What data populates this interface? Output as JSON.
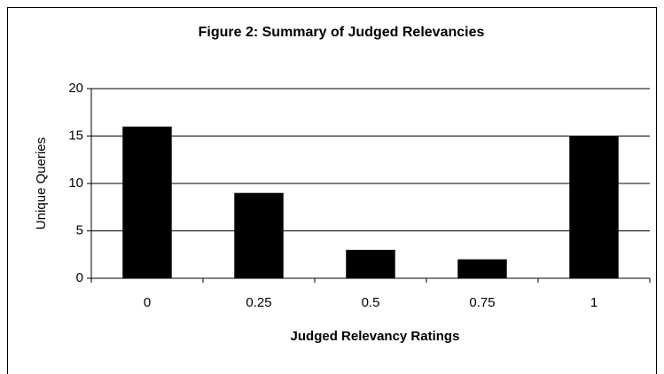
{
  "chart_data": {
    "type": "bar",
    "title": "Figure 2: Summary of Judged Relevancies",
    "x_label": "Judged Relevancy Ratings",
    "y_label": "Unique Queries",
    "categories": [
      "0",
      "0.25",
      "0.5",
      "0.75",
      "1"
    ],
    "values": [
      16,
      9,
      3,
      2,
      15
    ],
    "color": "#000000",
    "ylim": [
      0,
      20
    ],
    "yticks": [
      0,
      5,
      10,
      15,
      20
    ],
    "grid": true
  }
}
